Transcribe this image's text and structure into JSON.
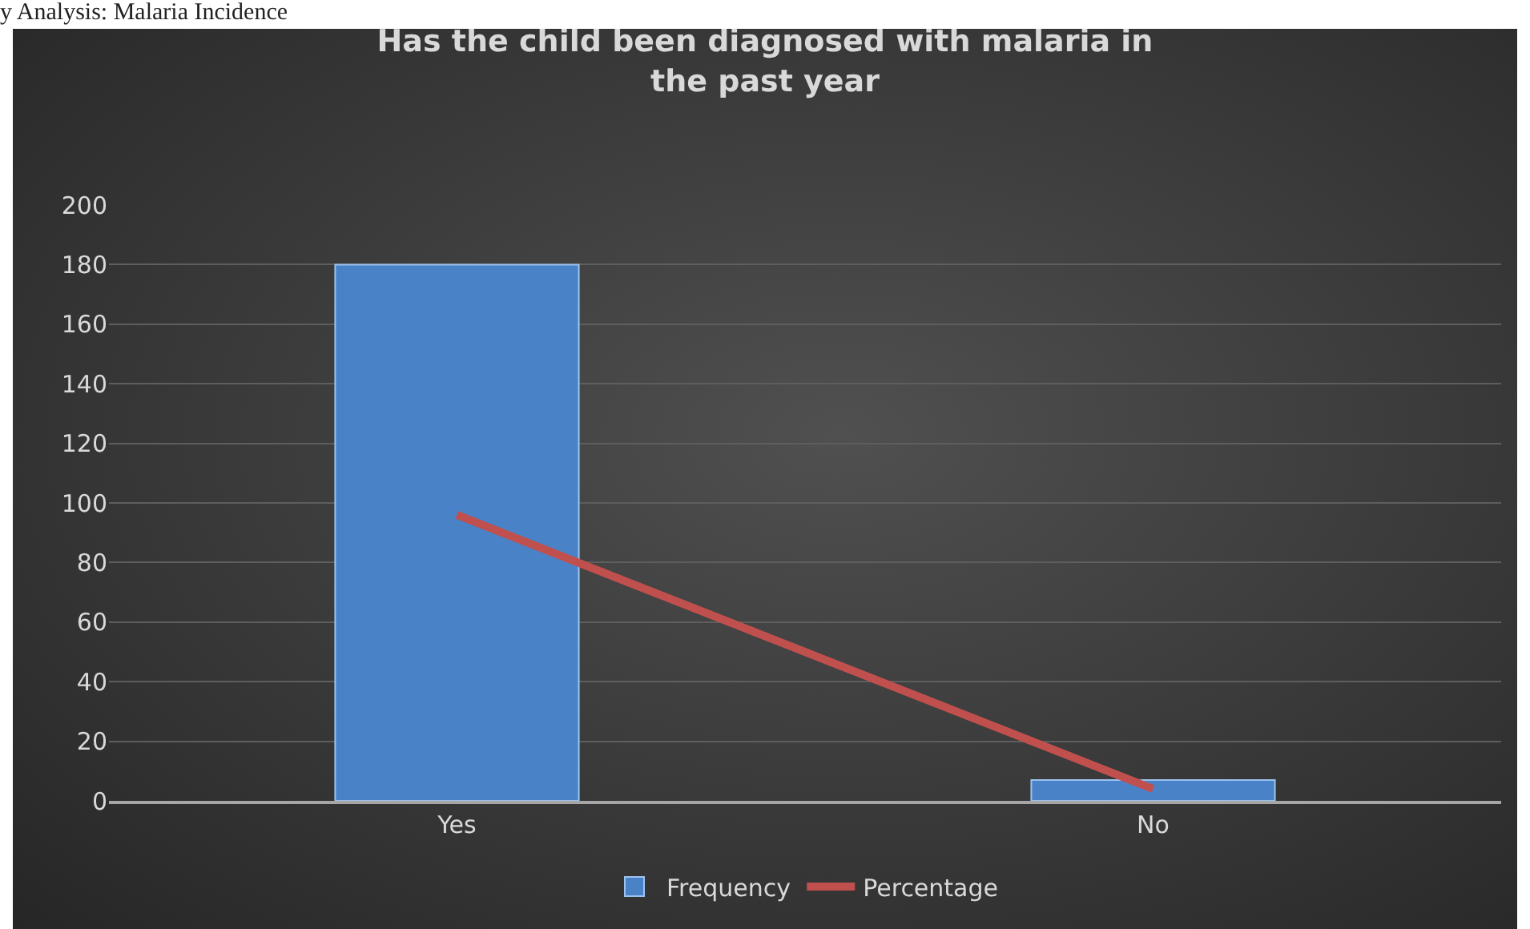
{
  "chart_data": {
    "type": "bar",
    "title": "Has the child been diagnosed with malaria in the past year",
    "annotations": [
      "y Analysis: Malaria Incidence"
    ],
    "categories": [
      "Yes",
      "No"
    ],
    "series": [
      {
        "name": "Frequency",
        "color": "#4a82c8",
        "values": [
          180,
          7
        ]
      },
      {
        "name": "Percentage",
        "type": "line",
        "color": "#c0504d",
        "values": [
          96,
          4
        ]
      }
    ],
    "ylim": [
      0,
      200
    ],
    "yticks": [
      0,
      20,
      40,
      60,
      80,
      100,
      120,
      140,
      160,
      180,
      200
    ],
    "grid": "y",
    "legend": "bottom",
    "marker": "none"
  }
}
